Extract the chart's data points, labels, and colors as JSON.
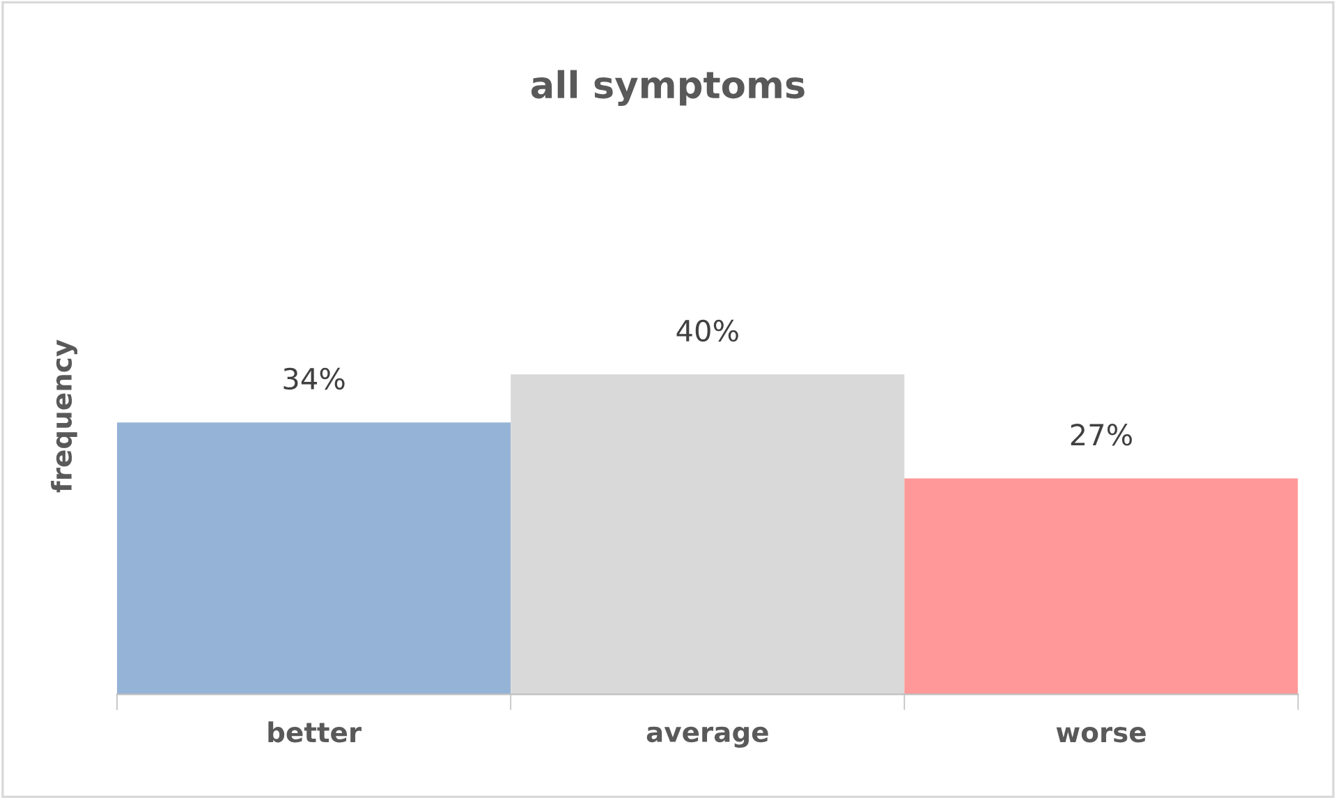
{
  "chart_data": {
    "type": "bar",
    "title": "all symptoms",
    "ylabel": "frequency",
    "categories": [
      "better",
      "average",
      "worse"
    ],
    "values": [
      34,
      40,
      27
    ],
    "colors": [
      "#95b3d7",
      "#d9d9d9",
      "#ff9999"
    ],
    "value_labels": [
      "34%",
      "40%",
      "27%"
    ],
    "grid": false
  }
}
